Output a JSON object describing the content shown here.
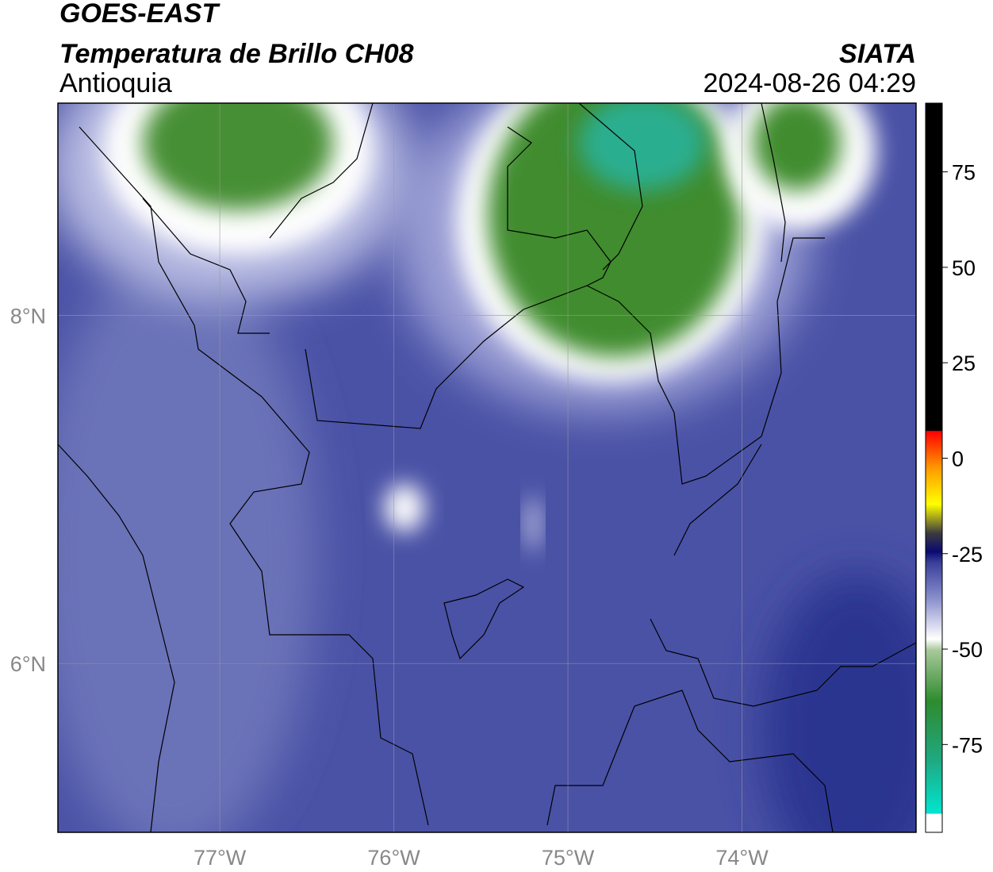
{
  "header": {
    "title": "GOES-EAST",
    "subtitle": "Temperatura de Brillo CH08",
    "region": "Antioquia",
    "source": "SIATA",
    "datetime": "2024-08-26 04:29"
  },
  "map": {
    "xlim": [
      -77.93,
      -73.0
    ],
    "ylim": [
      5.03,
      9.22
    ],
    "xticks": [
      {
        "value": -77,
        "label": "77°W"
      },
      {
        "value": -76,
        "label": "76°W"
      },
      {
        "value": -75,
        "label": "75°W"
      },
      {
        "value": -74,
        "label": "74°W"
      }
    ],
    "yticks": [
      {
        "value": 6,
        "label": "6°N"
      },
      {
        "value": 8,
        "label": "8°N"
      }
    ]
  },
  "colorbar": {
    "lim": [
      -98,
      93
    ],
    "ticks": [
      -75,
      -50,
      -25,
      0,
      25,
      50,
      75
    ]
  }
}
